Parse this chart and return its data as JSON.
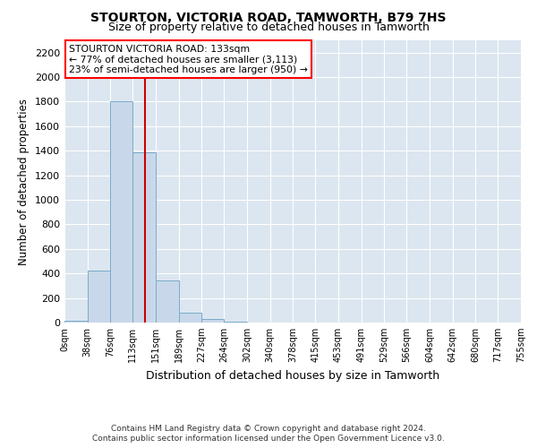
{
  "title": "STOURTON, VICTORIA ROAD, TAMWORTH, B79 7HS",
  "subtitle": "Size of property relative to detached houses in Tamworth",
  "xlabel": "Distribution of detached houses by size in Tamworth",
  "ylabel": "Number of detached properties",
  "bar_color": "#c8d8ea",
  "bar_edge_color": "#7aaac8",
  "plot_bg_color": "#dce6f0",
  "fig_bg_color": "#ffffff",
  "grid_color": "#ffffff",
  "vline_x": 133,
  "vline_color": "#cc0000",
  "bin_edges": [
    0,
    38,
    76,
    113,
    151,
    189,
    227,
    264,
    302,
    340,
    378,
    415,
    453,
    491,
    529,
    566,
    604,
    642,
    680,
    717,
    755
  ],
  "bin_labels": [
    "0sqm",
    "38sqm",
    "76sqm",
    "113sqm",
    "151sqm",
    "189sqm",
    "227sqm",
    "264sqm",
    "302sqm",
    "340sqm",
    "378sqm",
    "415sqm",
    "453sqm",
    "491sqm",
    "529sqm",
    "566sqm",
    "604sqm",
    "642sqm",
    "680sqm",
    "717sqm",
    "755sqm"
  ],
  "bar_heights": [
    15,
    420,
    1800,
    1390,
    345,
    80,
    30,
    10,
    0,
    0,
    0,
    0,
    0,
    0,
    0,
    0,
    0,
    0,
    0,
    0
  ],
  "ylim": [
    0,
    2300
  ],
  "yticks": [
    0,
    200,
    400,
    600,
    800,
    1000,
    1200,
    1400,
    1600,
    1800,
    2000,
    2200
  ],
  "annotation_title": "STOURTON VICTORIA ROAD: 133sqm",
  "annotation_line1": "← 77% of detached houses are smaller (3,113)",
  "annotation_line2": "23% of semi-detached houses are larger (950) →",
  "footer1": "Contains HM Land Registry data © Crown copyright and database right 2024.",
  "footer2": "Contains public sector information licensed under the Open Government Licence v3.0."
}
